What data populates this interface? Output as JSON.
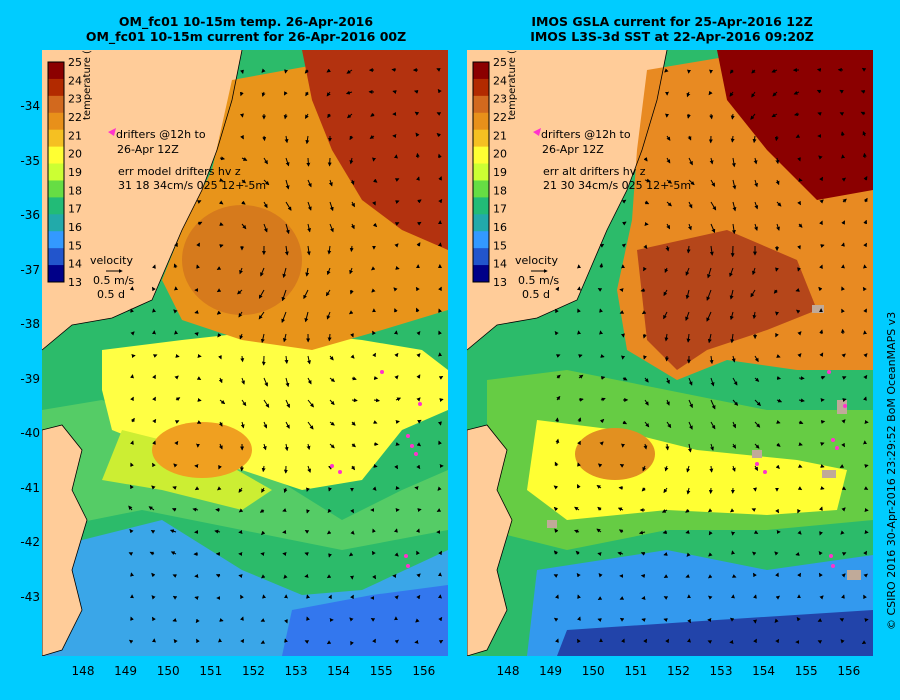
{
  "left_panel": {
    "title_line1": "OM_fc01 10-15m temp. 26-Apr-2016",
    "title_line2": "OM_fc01 10-15m current for 26-Apr-2016 00Z",
    "drifters_label_line1": "drifters @12h to",
    "drifters_label_line2": "26-Apr 12Z",
    "err_line1": "err model drifters hv z",
    "err_line2": "31 18 34cm/s 025 12+-5m",
    "velocity_label": "velocity",
    "velocity_scale": "0.5 m/s",
    "velocity_time": "0.5 d"
  },
  "right_panel": {
    "title_line1": "IMOS GSLA current for 25-Apr-2016 12Z",
    "title_line2": "IMOS L3S-3d SST at 22-Apr-2016 09:20Z",
    "drifters_label_line1": "drifters @12h to",
    "drifters_label_line2": "26-Apr 12Z",
    "err_line1": "err alt drifters hv z",
    "err_line2": "21 30 34cm/s 025 12+-5m",
    "velocity_label": "velocity",
    "velocity_scale": "0.5 m/s",
    "velocity_time": "0.5 d"
  },
  "colorbar": {
    "label": "temperature (°C)",
    "ticks": [
      "25",
      "24",
      "23",
      "22",
      "21",
      "20",
      "19",
      "18",
      "17",
      "16",
      "15",
      "14",
      "13"
    ],
    "colors": [
      "#8b0000",
      "#b22a00",
      "#d2691e",
      "#e8901a",
      "#f5c022",
      "#ffff33",
      "#ccff33",
      "#66dd44",
      "#22bb77",
      "#22aaaa",
      "#3399ff",
      "#2255cc",
      "#000088"
    ]
  },
  "y_ticks": [
    "-34",
    "-35",
    "-36",
    "-37",
    "-38",
    "-39",
    "-40",
    "-41",
    "-42",
    "-43"
  ],
  "x_ticks": [
    "148",
    "149",
    "150",
    "151",
    "152",
    "153",
    "154",
    "155",
    "156"
  ],
  "credit": "© CSIRO 2016   30-Apr-2016 23:29:52 BoM OceanMAPS v3"
}
